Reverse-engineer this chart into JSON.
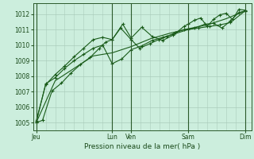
{
  "background_color": "#cceedd",
  "grid_color_major": "#aaccbb",
  "grid_color_minor": "#bbddcc",
  "line_color": "#1a5c1a",
  "xlabel": "Pression niveau de la mer( hPa )",
  "ylim": [
    1004.5,
    1012.7
  ],
  "yticks": [
    1005,
    1006,
    1007,
    1008,
    1009,
    1010,
    1011,
    1012
  ],
  "day_labels": [
    "Jeu",
    "Lun",
    "Ven",
    "Sam",
    "Dim"
  ],
  "day_positions": [
    0,
    72,
    90,
    144,
    198
  ],
  "vline_positions": [
    0,
    72,
    90,
    144,
    198
  ],
  "xlim": [
    -3,
    204
  ],
  "series1_x": [
    0,
    6,
    15,
    24,
    33,
    42,
    51,
    60,
    66,
    72,
    80,
    90,
    98,
    108,
    116,
    124,
    132,
    140,
    150,
    160,
    168,
    176,
    184,
    192,
    198
  ],
  "series1_y": [
    1005.0,
    1005.15,
    1007.05,
    1007.55,
    1008.2,
    1008.75,
    1009.2,
    1009.8,
    1010.2,
    1010.35,
    1011.1,
    1010.35,
    1009.8,
    1010.1,
    1010.35,
    1010.55,
    1010.8,
    1011.0,
    1011.1,
    1011.35,
    1011.4,
    1011.1,
    1011.55,
    1012.1,
    1012.2
  ],
  "series2_x": [
    0,
    9,
    18,
    27,
    36,
    45,
    54,
    63,
    72,
    81,
    90,
    100,
    110,
    120,
    130,
    144,
    154,
    164,
    174,
    184,
    198
  ],
  "series2_y": [
    1005.0,
    1007.5,
    1007.9,
    1008.5,
    1009.0,
    1009.4,
    1009.8,
    1010.0,
    1008.8,
    1009.1,
    1009.7,
    1009.95,
    1010.3,
    1010.5,
    1010.7,
    1011.0,
    1011.1,
    1011.2,
    1011.3,
    1011.45,
    1012.2
  ],
  "series3_x": [
    0,
    9,
    18,
    27,
    36,
    45,
    54,
    63,
    72,
    82,
    90,
    100,
    110,
    120,
    130,
    140,
    144,
    150,
    156,
    162,
    168,
    174,
    180,
    186,
    192,
    198
  ],
  "series3_y": [
    1005.1,
    1007.45,
    1008.1,
    1008.65,
    1009.25,
    1009.8,
    1010.35,
    1010.5,
    1010.35,
    1011.35,
    1010.45,
    1011.15,
    1010.55,
    1010.3,
    1010.65,
    1011.2,
    1011.35,
    1011.6,
    1011.75,
    1011.2,
    1011.65,
    1011.95,
    1012.05,
    1011.65,
    1012.3,
    1012.25
  ],
  "series4_x": [
    0,
    18,
    36,
    54,
    72,
    90,
    108,
    126,
    144,
    162,
    180,
    198
  ],
  "series4_y": [
    1005.0,
    1007.7,
    1008.5,
    1009.3,
    1009.5,
    1009.9,
    1010.4,
    1010.75,
    1011.05,
    1011.3,
    1011.7,
    1012.2
  ]
}
